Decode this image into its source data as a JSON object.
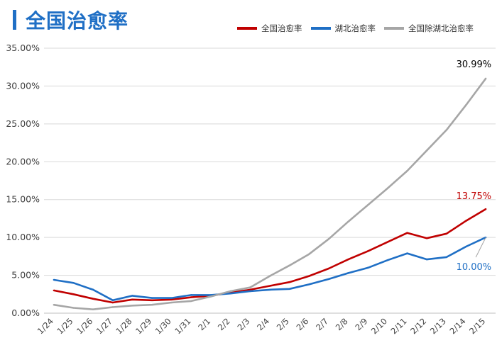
{
  "chart_data": {
    "type": "line",
    "title": "全国治愈率",
    "categories": [
      "1/24",
      "1/25",
      "1/26",
      "1/27",
      "1/28",
      "1/29",
      "1/30",
      "1/31",
      "2/1",
      "2/2",
      "2/3",
      "2/4",
      "2/5",
      "2/6",
      "2/7",
      "2/8",
      "2/9",
      "2/10",
      "2/11",
      "2/12",
      "2/13",
      "2/14",
      "2/15"
    ],
    "yticks": [
      "0.00%",
      "5.00%",
      "10.00%",
      "15.00%",
      "20.00%",
      "25.00%",
      "30.00%",
      "35.00%"
    ],
    "ylim": [
      0,
      35
    ],
    "grid": true,
    "legend_position": "top-right",
    "series": [
      {
        "name": "全国治愈率",
        "color": "#c00000",
        "values": [
          3.0,
          2.5,
          1.9,
          1.4,
          1.8,
          1.7,
          1.8,
          2.1,
          2.3,
          2.7,
          3.1,
          3.6,
          4.1,
          4.9,
          5.9,
          7.1,
          8.2,
          9.4,
          10.6,
          9.9,
          10.5,
          12.2,
          13.75
        ],
        "end_label": "13.75%",
        "end_label_color": "#c00000"
      },
      {
        "name": "湖北治愈率",
        "color": "#1f6fc5",
        "values": [
          4.4,
          4.0,
          3.1,
          1.7,
          2.3,
          2.0,
          2.0,
          2.4,
          2.4,
          2.6,
          2.9,
          3.1,
          3.2,
          3.8,
          4.5,
          5.3,
          6.0,
          7.0,
          7.9,
          7.1,
          7.4,
          8.8,
          10.0
        ],
        "end_label": "10.00%",
        "end_label_color": "#1f6fc5"
      },
      {
        "name": "全国除湖北治愈率",
        "color": "#a6a6a6",
        "values": [
          1.1,
          0.7,
          0.5,
          0.8,
          1.0,
          1.1,
          1.4,
          1.6,
          2.2,
          2.9,
          3.4,
          4.9,
          6.3,
          7.8,
          9.8,
          12.1,
          14.3,
          16.5,
          18.8,
          21.5,
          24.2,
          27.5,
          30.99
        ],
        "end_label": "30.99%",
        "end_label_color": "#000000"
      }
    ]
  }
}
